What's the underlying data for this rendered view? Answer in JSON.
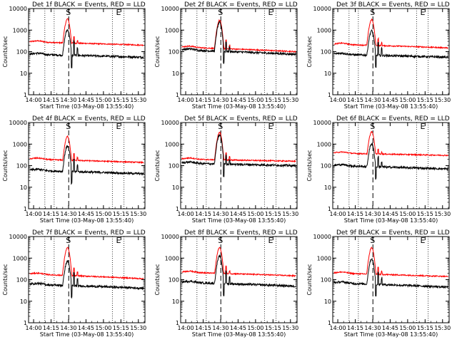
{
  "chart_data": [
    {
      "type": "line",
      "title": "Det 1f BLACK = Events, RED = LLD",
      "xlabel": "Start Time (03-May-08 13:55:40)",
      "ylabel": "Counts/sec",
      "x_ticks": [
        "14:00",
        "14:15",
        "14:30",
        "14:45",
        "15:00",
        "15:15",
        "15:30"
      ],
      "y_ticks": [
        "1",
        "10",
        "100",
        "1000",
        "10000"
      ],
      "yscale": "log",
      "ylim": [
        1,
        10000
      ],
      "markers": [
        "S",
        "E"
      ],
      "series": [
        {
          "color": "#ff0000",
          "baseline": 280,
          "baseline_end": 200,
          "peak": 3200,
          "spikes": [
            500,
            320
          ]
        },
        {
          "color": "#000000",
          "baseline": 75,
          "baseline_end": 55,
          "peak": 1000,
          "spikes": [
            300,
            150
          ]
        }
      ]
    },
    {
      "type": "line",
      "title": "Det 2f BLACK = Events, RED = LLD",
      "xlabel": "Start Time (03-May-08 13:55:40)",
      "ylabel": "Counts/sec",
      "x_ticks": [
        "14:00",
        "14:15",
        "14:30",
        "14:45",
        "15:00",
        "15:15",
        "15:30"
      ],
      "y_ticks": [
        "1",
        "10",
        "100",
        "1000",
        "10000"
      ],
      "yscale": "log",
      "ylim": [
        1,
        10000
      ],
      "markers": [
        "S",
        "E"
      ],
      "series": [
        {
          "color": "#ff0000",
          "baseline": 160,
          "baseline_end": 100,
          "peak": 2800,
          "spikes": [
            350,
            200
          ]
        },
        {
          "color": "#000000",
          "baseline": 120,
          "baseline_end": 75,
          "peak": 2200,
          "spikes": [
            280,
            160
          ]
        }
      ]
    },
    {
      "type": "line",
      "title": "Det 3f BLACK = Events, RED = LLD",
      "xlabel": "Start Time (03-May-08 13:55:40)",
      "ylabel": "Counts/sec",
      "x_ticks": [
        "14:00",
        "14:15",
        "14:30",
        "14:45",
        "15:00",
        "15:15",
        "15:30"
      ],
      "y_ticks": [
        "1",
        "10",
        "100",
        "1000",
        "10000"
      ],
      "yscale": "log",
      "ylim": [
        1,
        10000
      ],
      "markers": [
        "S",
        "E"
      ],
      "series": [
        {
          "color": "#ff0000",
          "baseline": 220,
          "baseline_end": 150,
          "peak": 3000,
          "spikes": [
            400,
            260
          ]
        },
        {
          "color": "#000000",
          "baseline": 75,
          "baseline_end": 55,
          "peak": 900,
          "spikes": [
            260,
            140
          ]
        }
      ]
    },
    {
      "type": "line",
      "title": "Det 4f BLACK = Events, RED = LLD",
      "xlabel": "Start Time (03-May-08 13:55:40)",
      "ylabel": "Counts/sec",
      "x_ticks": [
        "14:00",
        "14:15",
        "14:30",
        "14:45",
        "15:00",
        "15:15",
        "15:30"
      ],
      "y_ticks": [
        "1",
        "10",
        "100",
        "1000",
        "10000"
      ],
      "yscale": "log",
      "ylim": [
        1,
        10000
      ],
      "markers": [
        "S",
        "E"
      ],
      "series": [
        {
          "color": "#ff0000",
          "baseline": 200,
          "baseline_end": 140,
          "peak": 2200,
          "spikes": [
            360,
            240
          ]
        },
        {
          "color": "#000000",
          "baseline": 60,
          "baseline_end": 42,
          "peak": 800,
          "spikes": [
            200,
            110
          ]
        }
      ]
    },
    {
      "type": "line",
      "title": "Det 5f BLACK = Events, RED = LLD",
      "xlabel": "Start Time (03-May-08 13:55:40)",
      "ylabel": "Counts/sec",
      "x_ticks": [
        "14:00",
        "14:15",
        "14:30",
        "14:45",
        "15:00",
        "15:15",
        "15:30"
      ],
      "y_ticks": [
        "1",
        "10",
        "100",
        "1000",
        "10000"
      ],
      "yscale": "log",
      "ylim": [
        1,
        10000
      ],
      "markers": [
        "S",
        "E"
      ],
      "series": [
        {
          "color": "#ff0000",
          "baseline": 200,
          "baseline_end": 160,
          "peak": 3400,
          "spikes": [
            380,
            260
          ]
        },
        {
          "color": "#000000",
          "baseline": 130,
          "baseline_end": 100,
          "peak": 2600,
          "spikes": [
            300,
            180
          ]
        }
      ]
    },
    {
      "type": "line",
      "title": "Det 6f BLACK = Events, RED = LLD",
      "xlabel": "Start Time (03-May-08 13:55:40)",
      "ylabel": "Counts/sec",
      "x_ticks": [
        "14:00",
        "14:15",
        "14:30",
        "14:45",
        "15:00",
        "15:15",
        "15:30"
      ],
      "y_ticks": [
        "1",
        "10",
        "100",
        "1000",
        "10000"
      ],
      "yscale": "log",
      "ylim": [
        1,
        10000
      ],
      "markers": [
        "S",
        "E"
      ],
      "series": [
        {
          "color": "#ff0000",
          "baseline": 380,
          "baseline_end": 300,
          "peak": 3600,
          "spikes": [
            600,
            420
          ]
        },
        {
          "color": "#000000",
          "baseline": 100,
          "baseline_end": 70,
          "peak": 1000,
          "spikes": [
            260,
            150
          ]
        }
      ]
    },
    {
      "type": "line",
      "title": "Det 7f BLACK = Events, RED = LLD",
      "xlabel": "Start Time (03-May-08 13:55:40)",
      "ylabel": "Counts/sec",
      "x_ticks": [
        "14:00",
        "14:15",
        "14:30",
        "14:45",
        "15:00",
        "15:15",
        "15:30"
      ],
      "y_ticks": [
        "1",
        "10",
        "100",
        "1000",
        "10000"
      ],
      "yscale": "log",
      "ylim": [
        1,
        10000
      ],
      "markers": [
        "S",
        "E"
      ],
      "series": [
        {
          "color": "#ff0000",
          "baseline": 180,
          "baseline_end": 110,
          "peak": 3000,
          "spikes": [
            350,
            220
          ]
        },
        {
          "color": "#000000",
          "baseline": 60,
          "baseline_end": 40,
          "peak": 700,
          "spikes": [
            200,
            100
          ]
        }
      ]
    },
    {
      "type": "line",
      "title": "Det 8f BLACK = Events, RED = LLD",
      "xlabel": "Start Time (03-May-08 13:55:40)",
      "ylabel": "Counts/sec",
      "x_ticks": [
        "14:00",
        "14:15",
        "14:30",
        "14:45",
        "15:00",
        "15:15",
        "15:30"
      ],
      "y_ticks": [
        "1",
        "10",
        "100",
        "1000",
        "10000"
      ],
      "yscale": "log",
      "ylim": [
        1,
        10000
      ],
      "markers": [
        "S",
        "E"
      ],
      "series": [
        {
          "color": "#ff0000",
          "baseline": 220,
          "baseline_end": 150,
          "peak": 3000,
          "spikes": [
            420,
            260
          ]
        },
        {
          "color": "#000000",
          "baseline": 75,
          "baseline_end": 50,
          "peak": 1200,
          "spikes": [
            260,
            130
          ]
        }
      ]
    },
    {
      "type": "line",
      "title": "Det 9f BLACK = Events, RED = LLD",
      "xlabel": "Start Time (03-May-08 13:55:40)",
      "ylabel": "Counts/sec",
      "x_ticks": [
        "14:00",
        "14:15",
        "14:30",
        "14:45",
        "15:00",
        "15:15",
        "15:30"
      ],
      "y_ticks": [
        "1",
        "10",
        "100",
        "1000",
        "10000"
      ],
      "yscale": "log",
      "ylim": [
        1,
        10000
      ],
      "markers": [
        "S",
        "E"
      ],
      "series": [
        {
          "color": "#ff0000",
          "baseline": 200,
          "baseline_end": 140,
          "peak": 3000,
          "spikes": [
            380,
            240
          ]
        },
        {
          "color": "#000000",
          "baseline": 70,
          "baseline_end": 45,
          "peak": 900,
          "spikes": [
            220,
            120
          ]
        }
      ]
    }
  ]
}
